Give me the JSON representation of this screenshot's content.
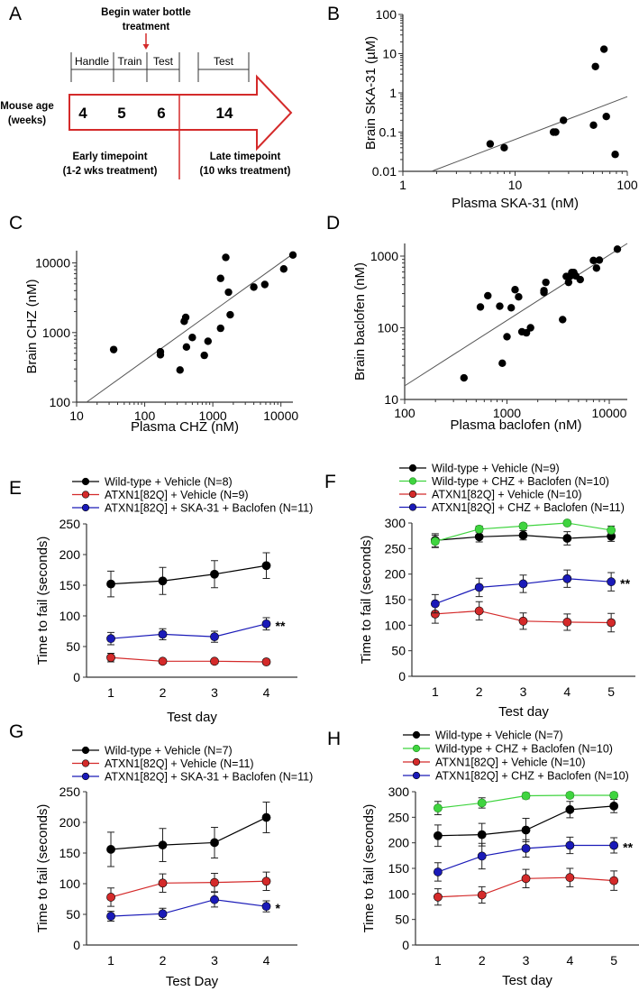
{
  "diagram": {
    "panel": "A",
    "treatment_note": [
      "Begin water bottle",
      "treatment"
    ],
    "phases_early": [
      "Handle",
      "Train",
      "Test"
    ],
    "phase_late": "Test",
    "axis_label": [
      "Mouse age",
      "(weeks)"
    ],
    "ages": [
      "4",
      "5",
      "6",
      "14"
    ],
    "early": [
      "Early timepoint",
      "(1-2 wks treatment)"
    ],
    "late": [
      "Late timepoint",
      "(10 wks treatment)"
    ],
    "accent_color": "#d42a2a"
  },
  "chart_data": [
    {
      "panel": "B",
      "type": "scatter",
      "xscale": "log",
      "yscale": "log",
      "xlabel": "Plasma SKA-31 (nM)",
      "ylabel": "Brain SKA-31 (µM)",
      "xlim": [
        1,
        100
      ],
      "ylim": [
        0.01,
        100
      ],
      "xticks": [
        "1",
        "10",
        "100"
      ],
      "yticks": [
        "0.01",
        "0.1",
        "1",
        "10",
        "100"
      ],
      "points": [
        [
          6,
          0.05
        ],
        [
          8,
          0.04
        ],
        [
          22,
          0.1
        ],
        [
          23,
          0.1
        ],
        [
          27,
          0.2
        ],
        [
          50,
          0.15
        ],
        [
          52,
          4.7
        ],
        [
          62,
          13
        ],
        [
          65,
          0.25
        ],
        [
          78,
          0.027
        ]
      ],
      "fit_line": {
        "x": [
          1.8,
          100
        ],
        "y": [
          0.01,
          0.8
        ]
      }
    },
    {
      "panel": "C",
      "type": "scatter",
      "xscale": "log",
      "yscale": "log",
      "xlabel": "Plasma CHZ (nM)",
      "ylabel": "Brain CHZ (nM)",
      "xlim": [
        10,
        15000
      ],
      "ylim": [
        100,
        15000
      ],
      "xticks": [
        "10",
        "100",
        "1000",
        "10000"
      ],
      "yticks": [
        "100",
        "1000",
        "10000"
      ],
      "points": [
        [
          35,
          570
        ],
        [
          170,
          530
        ],
        [
          170,
          480
        ],
        [
          330,
          290
        ],
        [
          380,
          1450
        ],
        [
          400,
          1650
        ],
        [
          410,
          620
        ],
        [
          500,
          850
        ],
        [
          750,
          470
        ],
        [
          850,
          750
        ],
        [
          1300,
          1150
        ],
        [
          1300,
          6000
        ],
        [
          1550,
          12000
        ],
        [
          1700,
          3800
        ],
        [
          1800,
          1800
        ],
        [
          4000,
          4500
        ],
        [
          5800,
          4900
        ],
        [
          11000,
          8200
        ],
        [
          15000,
          13000
        ]
      ],
      "fit_line": {
        "x": [
          14,
          15000
        ],
        "y": [
          100,
          13500
        ]
      }
    },
    {
      "panel": "D",
      "type": "scatter",
      "xscale": "log",
      "yscale": "log",
      "xlabel": "Plasma baclofen (nM)",
      "ylabel": "Brain baclofen (nM)",
      "xlim": [
        100,
        15000
      ],
      "ylim": [
        10,
        1500
      ],
      "xticks": [
        "100",
        "1000",
        "10000"
      ],
      "yticks": [
        "10",
        "100",
        "1000"
      ],
      "points": [
        [
          380,
          20
        ],
        [
          550,
          195
        ],
        [
          650,
          280
        ],
        [
          850,
          200
        ],
        [
          900,
          32
        ],
        [
          1000,
          75
        ],
        [
          1100,
          190
        ],
        [
          1200,
          340
        ],
        [
          1300,
          270
        ],
        [
          1400,
          88
        ],
        [
          1550,
          85
        ],
        [
          1700,
          100
        ],
        [
          2300,
          330
        ],
        [
          2300,
          310
        ],
        [
          2400,
          430
        ],
        [
          3500,
          130
        ],
        [
          3800,
          520
        ],
        [
          4000,
          430
        ],
        [
          4100,
          520
        ],
        [
          4300,
          590
        ],
        [
          4500,
          590
        ],
        [
          4700,
          530
        ],
        [
          5200,
          470
        ],
        [
          7000,
          870
        ],
        [
          7500,
          680
        ],
        [
          8000,
          880
        ],
        [
          12000,
          1250
        ]
      ],
      "fit_line": {
        "x": [
          100,
          15000
        ],
        "y": [
          15.5,
          1500
        ]
      }
    },
    {
      "panel": "E",
      "type": "line",
      "xlabel": "Test day",
      "ylabel": "Time to fail (seconds)",
      "xlim": [
        0.53,
        4.6
      ],
      "ylim": [
        0,
        250
      ],
      "xticks": [
        "1",
        "2",
        "3",
        "4"
      ],
      "yticks": [
        "0",
        "50",
        "100",
        "150",
        "200",
        "250"
      ],
      "x": [
        1,
        2,
        3,
        4
      ],
      "series": [
        {
          "name": "Wild-type + Vehicle (N=8)",
          "color": "#000000",
          "values": [
            152,
            157,
            168,
            182
          ],
          "errors": [
            21,
            22,
            22,
            21
          ]
        },
        {
          "name": "ATXN1[82Q] + Vehicle (N=9)",
          "color": "#d42a2a",
          "values": [
            32,
            26,
            26,
            25
          ],
          "errors": [
            7,
            2,
            2,
            3
          ]
        },
        {
          "name": "ATXN1[82Q] + SKA-31 + Baclofen (N=11)",
          "color": "#1a1ab8",
          "values": [
            63,
            70,
            66,
            87
          ],
          "errors": [
            10,
            9,
            9,
            10
          ]
        }
      ],
      "annotation": {
        "text": "**",
        "x": 4,
        "y": 87
      }
    },
    {
      "panel": "F",
      "type": "line",
      "xlabel": "Test day",
      "ylabel": "Time to fail (seconds)",
      "xlim": [
        0.47,
        5.55
      ],
      "ylim": [
        0,
        300
      ],
      "xticks": [
        "1",
        "2",
        "3",
        "4",
        "5"
      ],
      "yticks": [
        "0",
        "50",
        "100",
        "150",
        "200",
        "250",
        "300"
      ],
      "x": [
        1,
        2,
        3,
        4,
        5
      ],
      "series": [
        {
          "name": "Wild-type + Vehicle (N=9)",
          "color": "#000000",
          "values": [
            266,
            273,
            276,
            270,
            274
          ],
          "errors": [
            13,
            10,
            9,
            13,
            10
          ]
        },
        {
          "name": "Wild-type + CHZ + Baclofen (N=10)",
          "color": "#3fd43f",
          "values": [
            264,
            288,
            294,
            300,
            286
          ],
          "errors": [
            12,
            6,
            5,
            3,
            8
          ]
        },
        {
          "name": "ATXN1[82Q] + Vehicle (N=10)",
          "color": "#d42a2a",
          "values": [
            122,
            128,
            108,
            106,
            105
          ],
          "errors": [
            18,
            18,
            16,
            16,
            18
          ]
        },
        {
          "name": "ATXN1[82Q] + CHZ + Baclofen (N=11)",
          "color": "#1a1ab8",
          "values": [
            142,
            174,
            181,
            191,
            185
          ],
          "errors": [
            18,
            18,
            17,
            17,
            18
          ]
        }
      ],
      "annotation": {
        "text": "**",
        "x": 5,
        "y": 185
      }
    },
    {
      "panel": "G",
      "type": "line",
      "xlabel": "Test Day",
      "ylabel": "Time to fail (seconds)",
      "xlim": [
        0.53,
        4.6
      ],
      "ylim": [
        0,
        250
      ],
      "xticks": [
        "1",
        "2",
        "3",
        "4"
      ],
      "yticks": [
        "0",
        "50",
        "100",
        "150",
        "200",
        "250"
      ],
      "x": [
        1,
        2,
        3,
        4
      ],
      "series": [
        {
          "name": "Wild-type + Vehicle (N=7)",
          "color": "#000000",
          "values": [
            156,
            163,
            167,
            208
          ],
          "errors": [
            28,
            27,
            25,
            25
          ]
        },
        {
          "name": "ATXN1[82Q] + Vehicle (N=11)",
          "color": "#d42a2a",
          "values": [
            78,
            101,
            102,
            104
          ],
          "errors": [
            15,
            15,
            15,
            15
          ]
        },
        {
          "name": "ATXN1[82Q] + SKA-31 + Baclofen (N=11)",
          "color": "#1a1ab8",
          "values": [
            47,
            51,
            74,
            63
          ],
          "errors": [
            8,
            9,
            12,
            9
          ]
        }
      ],
      "annotation": {
        "text": "*",
        "x": 4,
        "y": 63
      }
    },
    {
      "panel": "H",
      "type": "line",
      "xlabel": "Test day",
      "ylabel": "Time to fail (seconds)",
      "xlim": [
        0.49,
        5.57
      ],
      "ylim": [
        0,
        300
      ],
      "xticks": [
        "1",
        "2",
        "3",
        "4",
        "5"
      ],
      "yticks": [
        "0",
        "50",
        "100",
        "150",
        "200",
        "250",
        "300"
      ],
      "x": [
        1,
        2,
        3,
        4,
        5
      ],
      "series": [
        {
          "name": "Wild-type + Vehicle (N=7)",
          "color": "#000000",
          "values": [
            214,
            216,
            225,
            265,
            272
          ],
          "errors": [
            21,
            22,
            23,
            16,
            13
          ]
        },
        {
          "name": "Wild-type + CHZ + Baclofen (N=10)",
          "color": "#3fd43f",
          "values": [
            268,
            278,
            292,
            293,
            293
          ],
          "errors": [
            13,
            10,
            6,
            5,
            5
          ]
        },
        {
          "name": "ATXN1[82Q] + Vehicle (N=10)",
          "color": "#d42a2a",
          "values": [
            94,
            98,
            130,
            132,
            126
          ],
          "errors": [
            16,
            16,
            18,
            18,
            19
          ]
        },
        {
          "name": "ATXN1[82Q] + CHZ + Baclofen (N=10)",
          "color": "#1a1ab8",
          "values": [
            143,
            174,
            189,
            195,
            195
          ],
          "errors": [
            18,
            25,
            17,
            16,
            15
          ]
        }
      ],
      "annotation": {
        "text": "**",
        "x": 5,
        "y": 195
      }
    }
  ]
}
